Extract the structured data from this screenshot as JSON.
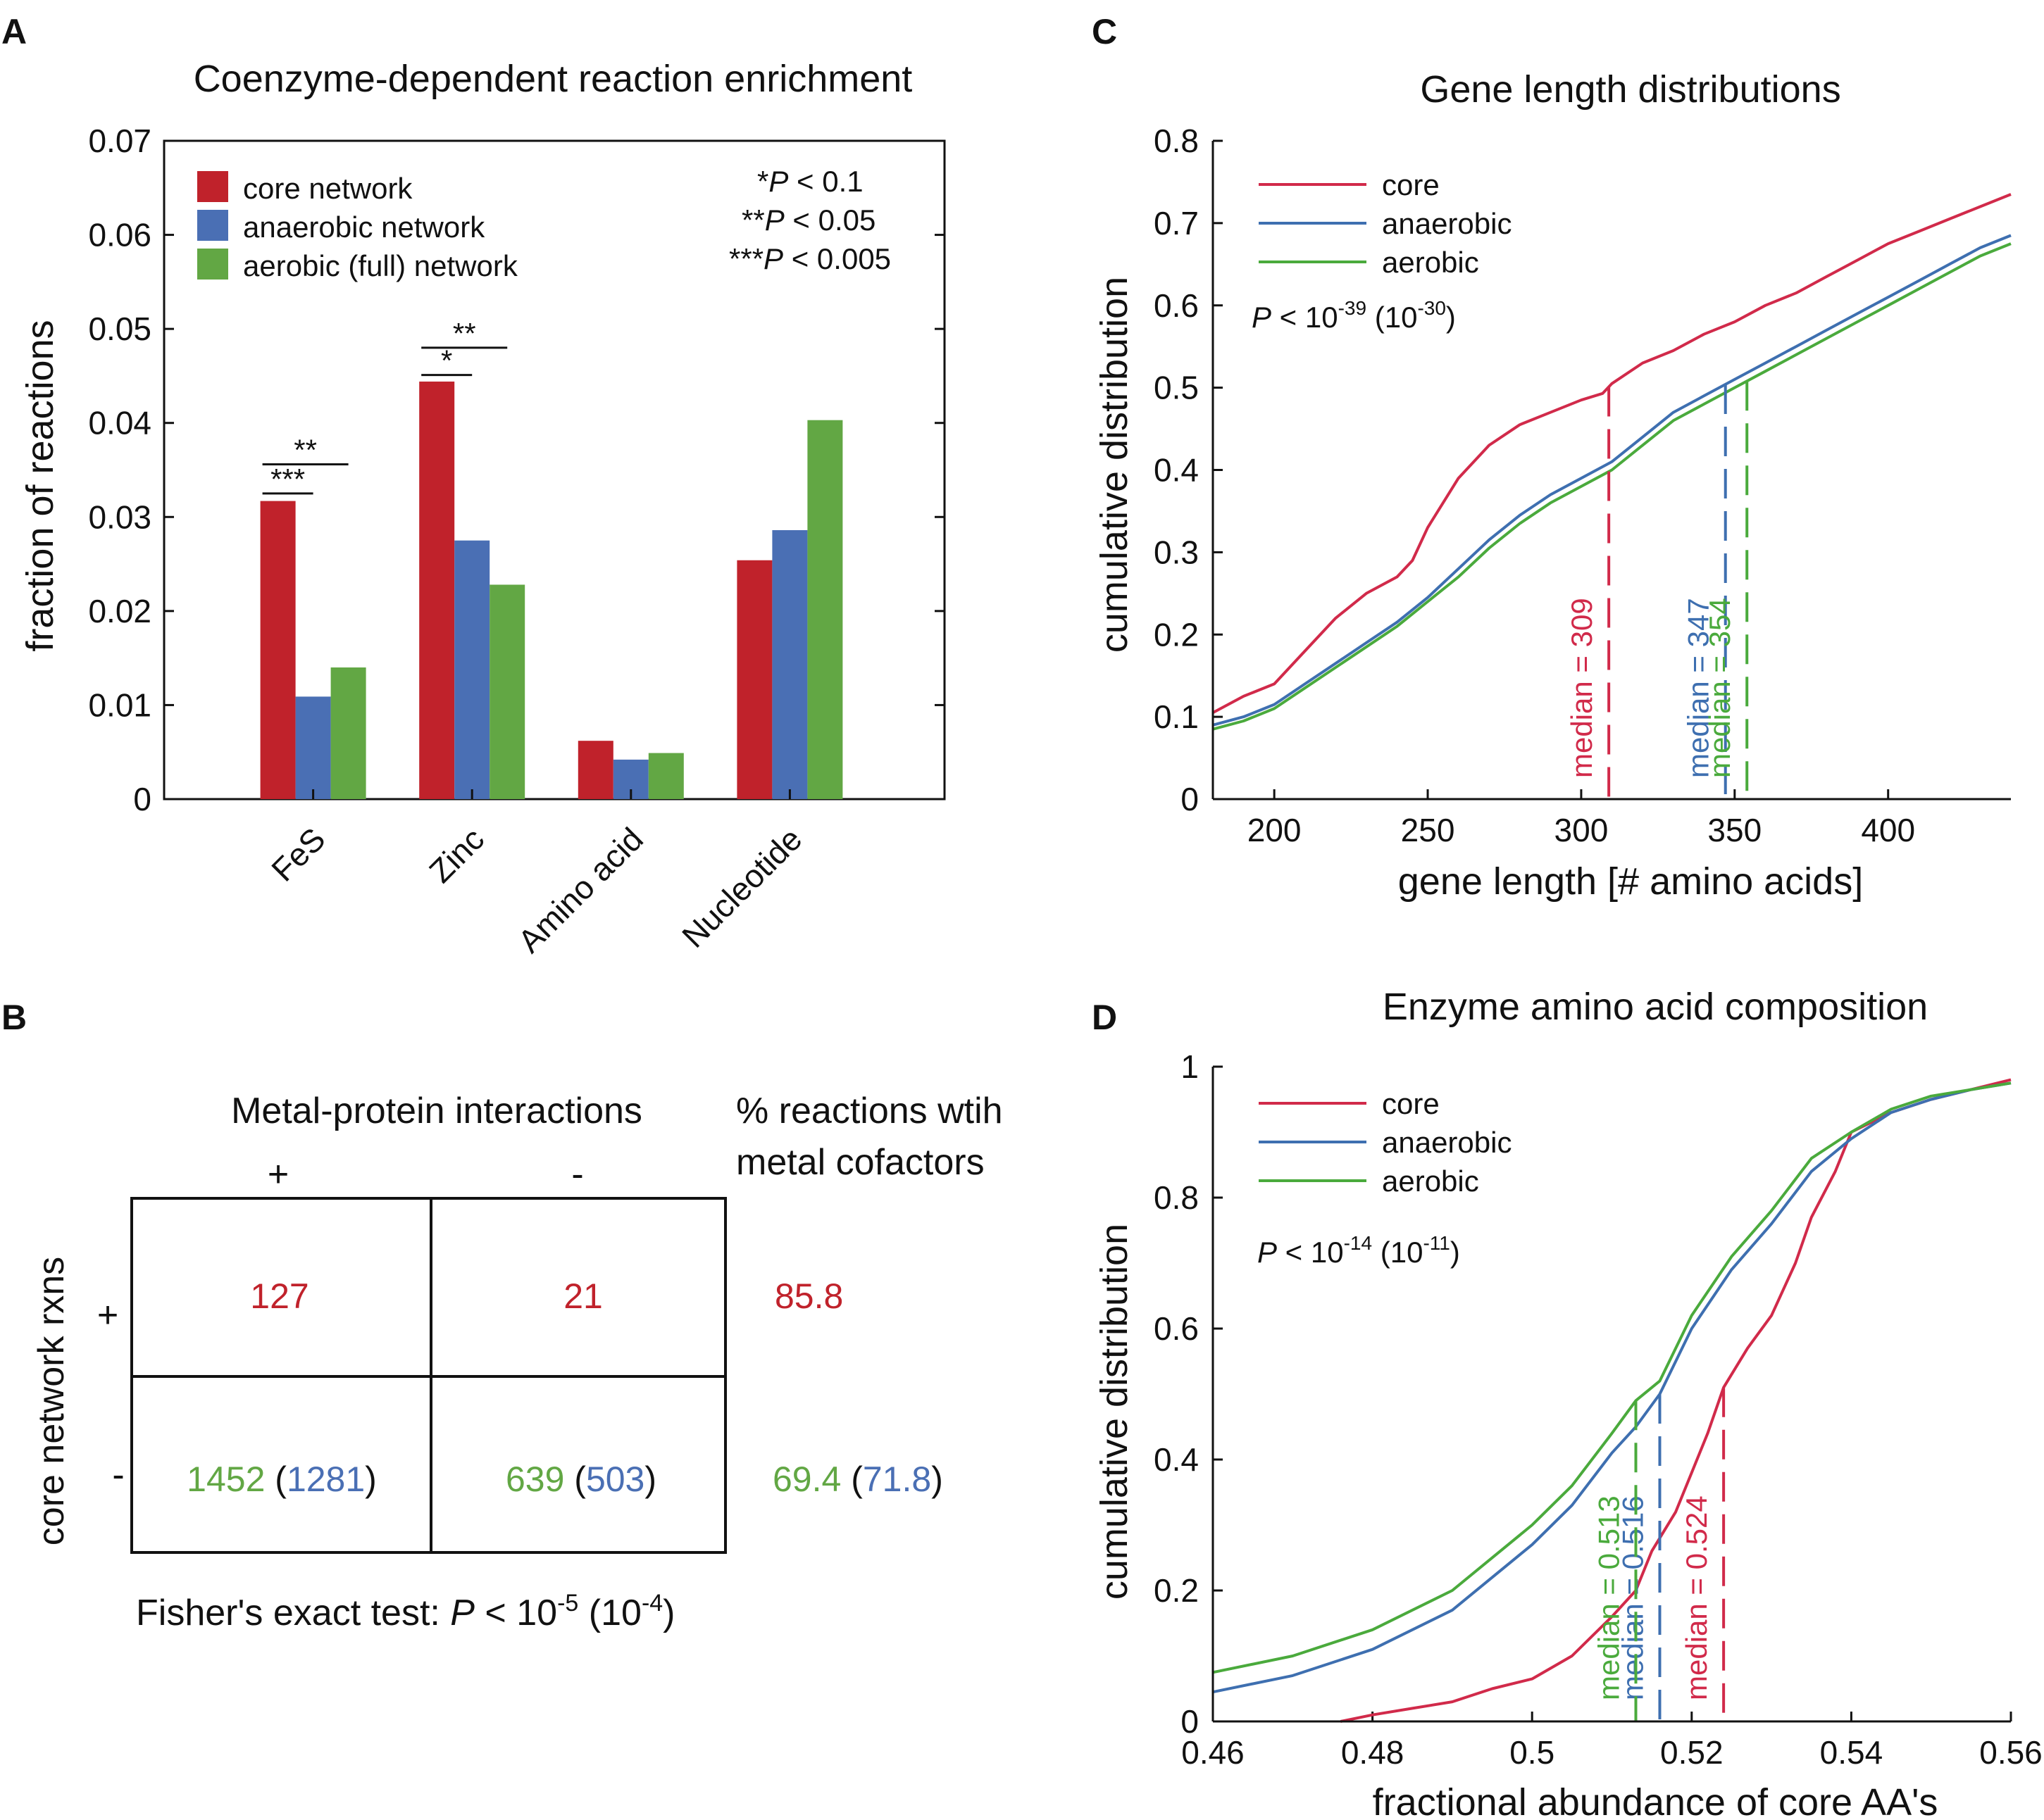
{
  "colors": {
    "core_bar": "#c0222b",
    "anaerobic_bar": "#4a6fb4",
    "aerobic_bar": "#62a744",
    "core_line": "#d12a4a",
    "anaerobic_line": "#3e6fb0",
    "aerobic_line": "#4aaa3c"
  },
  "panels": {
    "A": {
      "letter": "A"
    },
    "B": {
      "letter": "B"
    },
    "C": {
      "letter": "C"
    },
    "D": {
      "letter": "D"
    }
  },
  "chart_data": [
    {
      "id": "A",
      "type": "bar",
      "title": "Coenzyme-dependent reaction enrichment",
      "xlabel": "",
      "ylabel": "fraction of reactions",
      "ylim": [
        0,
        0.07
      ],
      "yticks": [
        0,
        0.01,
        0.02,
        0.03,
        0.04,
        0.05,
        0.06,
        0.07
      ],
      "ytick_labels": [
        "0",
        "0.01",
        "0.02",
        "0.03",
        "0.04",
        "0.05",
        "0.06",
        "0.07"
      ],
      "categories": [
        "FeS",
        "Zinc",
        "Amino acid",
        "Nucleotide"
      ],
      "series": [
        {
          "name": "core network",
          "values": [
            0.0317,
            0.0444,
            0.0062,
            0.0254
          ]
        },
        {
          "name": "anaerobic network",
          "values": [
            0.0109,
            0.0275,
            0.0042,
            0.0286
          ]
        },
        {
          "name": "aerobic (full) network",
          "values": [
            0.014,
            0.0228,
            0.0049,
            0.0403
          ]
        }
      ],
      "legend_position": "top-left",
      "significance_legend": [
        {
          "stars": "*",
          "p": "P",
          "rel": " < 0.1"
        },
        {
          "stars": "**",
          "p": "P",
          "rel": " < 0.05"
        },
        {
          "stars": "***",
          "p": "P",
          "rel": " < 0.005"
        }
      ],
      "annotations": [
        {
          "category": "FeS",
          "from_series": 0,
          "to_series": 1,
          "label": "***",
          "level": 0.0325
        },
        {
          "category": "FeS",
          "from_series": 0,
          "to_series": 2,
          "label": "**",
          "level": 0.0356
        },
        {
          "category": "Zinc",
          "from_series": 0,
          "to_series": 1,
          "label": "*",
          "level": 0.0451
        },
        {
          "category": "Zinc",
          "from_series": 0,
          "to_series": 2,
          "label": "**",
          "level": 0.048
        }
      ]
    },
    {
      "id": "C",
      "type": "line",
      "title": "Gene length distributions",
      "xlabel": "gene length [# amino acids]",
      "ylabel": "cumulative distribution",
      "xlim": [
        180,
        440
      ],
      "ylim": [
        0,
        0.8
      ],
      "xticks": [
        200,
        250,
        300,
        350,
        400
      ],
      "yticks": [
        0,
        0.1,
        0.2,
        0.3,
        0.4,
        0.5,
        0.6,
        0.7,
        0.8
      ],
      "ytick_labels": [
        "0",
        "0.1",
        "0.2",
        "0.3",
        "0.4",
        "0.5",
        "0.6",
        "0.7",
        "0.8"
      ],
      "legend_position": "top-left",
      "pvalue": {
        "p": "P",
        "rel": " < 10",
        "exp": "-39",
        "alt_base": " (10",
        "alt_exp": "-30",
        "close": ")"
      },
      "series": [
        {
          "name": "core",
          "x": [
            180,
            190,
            200,
            210,
            220,
            230,
            240,
            245,
            250,
            260,
            270,
            280,
            290,
            300,
            307,
            310,
            320,
            330,
            340,
            350,
            360,
            370,
            380,
            390,
            400,
            410,
            420,
            430,
            440
          ],
          "y": [
            0.105,
            0.125,
            0.14,
            0.18,
            0.22,
            0.25,
            0.27,
            0.29,
            0.33,
            0.39,
            0.43,
            0.455,
            0.47,
            0.485,
            0.493,
            0.505,
            0.53,
            0.545,
            0.565,
            0.58,
            0.6,
            0.615,
            0.635,
            0.655,
            0.675,
            0.69,
            0.705,
            0.72,
            0.735
          ]
        },
        {
          "name": "anaerobic",
          "x": [
            180,
            190,
            200,
            210,
            220,
            230,
            240,
            250,
            260,
            270,
            280,
            290,
            300,
            310,
            320,
            330,
            340,
            350,
            360,
            370,
            380,
            390,
            400,
            410,
            420,
            430,
            440
          ],
          "y": [
            0.09,
            0.1,
            0.115,
            0.14,
            0.165,
            0.19,
            0.215,
            0.245,
            0.28,
            0.315,
            0.345,
            0.37,
            0.39,
            0.41,
            0.44,
            0.47,
            0.49,
            0.51,
            0.53,
            0.55,
            0.57,
            0.59,
            0.61,
            0.63,
            0.65,
            0.67,
            0.685
          ]
        },
        {
          "name": "aerobic",
          "x": [
            180,
            190,
            200,
            210,
            220,
            230,
            240,
            250,
            260,
            270,
            280,
            290,
            300,
            310,
            320,
            330,
            340,
            350,
            360,
            370,
            380,
            390,
            400,
            410,
            420,
            430,
            440
          ],
          "y": [
            0.085,
            0.095,
            0.11,
            0.135,
            0.16,
            0.185,
            0.21,
            0.24,
            0.27,
            0.305,
            0.335,
            0.36,
            0.38,
            0.4,
            0.43,
            0.46,
            0.48,
            0.5,
            0.52,
            0.54,
            0.56,
            0.58,
            0.6,
            0.62,
            0.64,
            0.66,
            0.675
          ]
        }
      ],
      "medians": [
        {
          "series": 0,
          "value": 309,
          "label": "median = 309"
        },
        {
          "series": 1,
          "value": 347,
          "label": "median = 347"
        },
        {
          "series": 2,
          "value": 354,
          "label": "median = 354"
        }
      ]
    },
    {
      "id": "D",
      "type": "line",
      "title": "Enzyme amino acid composition",
      "xlabel": "fractional abundance of core AA's",
      "ylabel": "cumulative distribution",
      "xlim": [
        0.46,
        0.56
      ],
      "ylim": [
        0,
        1
      ],
      "xticks": [
        0.46,
        0.48,
        0.5,
        0.52,
        0.54,
        0.56
      ],
      "xtick_labels": [
        "0.46",
        "0.48",
        "0.5",
        "0.52",
        "0.54",
        "0.56"
      ],
      "yticks": [
        0,
        0.2,
        0.4,
        0.6,
        0.8,
        1
      ],
      "ytick_labels": [
        "0",
        "0.2",
        "0.4",
        "0.6",
        "0.8",
        "1"
      ],
      "legend_position": "top-left",
      "pvalue": {
        "p": "P",
        "rel": " < 10",
        "exp": "-14",
        "alt_base": " (10",
        "alt_exp": "-11",
        "close": ")"
      },
      "series": [
        {
          "name": "core",
          "x": [
            0.476,
            0.48,
            0.485,
            0.49,
            0.495,
            0.5,
            0.505,
            0.51,
            0.513,
            0.515,
            0.518,
            0.52,
            0.522,
            0.524,
            0.527,
            0.53,
            0.533,
            0.535,
            0.538,
            0.54,
            0.545,
            0.55,
            0.555,
            0.56
          ],
          "y": [
            0.0,
            0.01,
            0.02,
            0.03,
            0.05,
            0.065,
            0.1,
            0.16,
            0.2,
            0.26,
            0.32,
            0.38,
            0.44,
            0.51,
            0.57,
            0.62,
            0.7,
            0.77,
            0.84,
            0.9,
            0.93,
            0.95,
            0.965,
            0.98
          ]
        },
        {
          "name": "anaerobic",
          "x": [
            0.46,
            0.47,
            0.48,
            0.49,
            0.5,
            0.505,
            0.51,
            0.513,
            0.516,
            0.52,
            0.525,
            0.53,
            0.535,
            0.54,
            0.545,
            0.55,
            0.555,
            0.56
          ],
          "y": [
            0.045,
            0.07,
            0.11,
            0.17,
            0.27,
            0.33,
            0.41,
            0.45,
            0.5,
            0.6,
            0.69,
            0.76,
            0.84,
            0.89,
            0.93,
            0.95,
            0.965,
            0.975
          ]
        },
        {
          "name": "aerobic",
          "x": [
            0.46,
            0.47,
            0.48,
            0.49,
            0.5,
            0.505,
            0.51,
            0.513,
            0.516,
            0.52,
            0.525,
            0.53,
            0.535,
            0.54,
            0.545,
            0.55,
            0.555,
            0.56
          ],
          "y": [
            0.075,
            0.1,
            0.14,
            0.2,
            0.3,
            0.36,
            0.44,
            0.49,
            0.52,
            0.62,
            0.71,
            0.78,
            0.86,
            0.9,
            0.935,
            0.955,
            0.965,
            0.975
          ]
        }
      ],
      "medians": [
        {
          "series": 0,
          "value": 0.524,
          "label": "median = 0.524"
        },
        {
          "series": 1,
          "value": 0.516,
          "label": "median = 0.516"
        },
        {
          "series": 2,
          "value": 0.513,
          "label": "median = 0.513"
        }
      ]
    },
    {
      "id": "B",
      "type": "table",
      "column_header": "Metal-protein interactions",
      "row_header": "core network rxns",
      "pct_header_line1": "% reactions wtih",
      "pct_header_line2": "metal cofactors",
      "column_signs": [
        "+",
        "-"
      ],
      "row_signs": [
        "+",
        "-"
      ],
      "cells": {
        "r0c0": "127",
        "r0c1": "21",
        "r0pct": "85.8",
        "r1c0_green": "1452",
        "r1c0_blue": "1281",
        "r1c1_green": "639",
        "r1c1_blue": "503",
        "r1pct_green": "69.4",
        "r1pct_blue": "71.8",
        "open": " (",
        "close": ")"
      },
      "fisher": {
        "text": "Fisher's exact test: ",
        "p": "P",
        "rel": " < 10",
        "exp": "-5",
        "alt_base": " (10",
        "alt_exp": "-4",
        "close": ")"
      }
    }
  ]
}
